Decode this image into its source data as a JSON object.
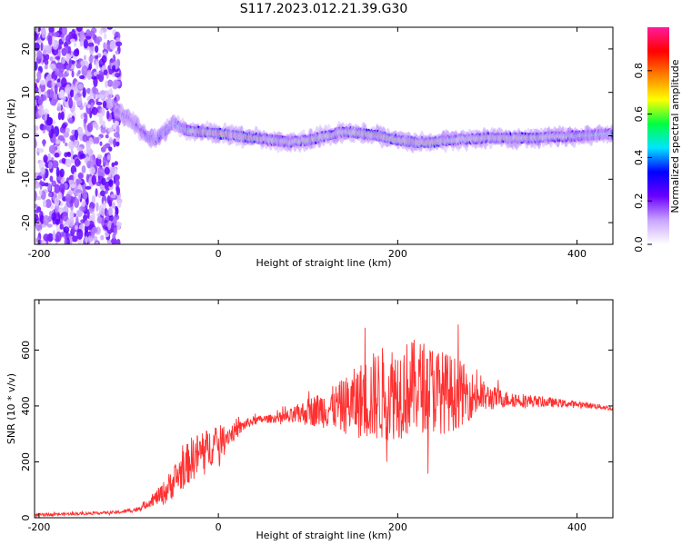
{
  "page_title": "S117.2023.012.21.39.G30",
  "chart_data": [
    {
      "type": "heatmap",
      "title": "S117.2023.012.21.39.G30",
      "xlabel": "Height of straight line (km)",
      "ylabel": "Frequency (Hz)",
      "xlim": [
        -205,
        440
      ],
      "ylim": [
        -25,
        25
      ],
      "x_ticks": [
        "-200",
        "0",
        "200",
        "400"
      ],
      "y_ticks": [
        "-20",
        "-10",
        "0",
        "10",
        "20"
      ],
      "colorbar": {
        "label": "Normalized spectral amplitude",
        "range": [
          0,
          1
        ],
        "ticks": [
          "0.0",
          "0.2",
          "0.4",
          "0.6",
          "0.8"
        ],
        "colors": [
          "#ffffff",
          "#c9a4ff",
          "#6a00ff",
          "#0000ff",
          "#00e5ff",
          "#00ff40",
          "#ffff00",
          "#ff8000",
          "#ff0000",
          "#ff1a9c"
        ]
      },
      "noise_region_x": [
        -205,
        -110
      ],
      "ridge": {
        "x": [
          -115,
          -100,
          -90,
          -80,
          -70,
          -60,
          -50,
          -40,
          -30,
          -20,
          0,
          20,
          40,
          60,
          80,
          100,
          120,
          140,
          160,
          180,
          200,
          220,
          240,
          260,
          300,
          350,
          400,
          440
        ],
        "freq": [
          6,
          4,
          2,
          0,
          -1,
          1,
          3,
          1.5,
          1,
          1,
          0.5,
          0,
          -0.5,
          -1,
          -1.5,
          -1,
          0,
          1,
          0.5,
          0,
          -1,
          -1.5,
          -1.5,
          -1,
          -0.5,
          -0.5,
          0,
          0.5
        ],
        "amplitude": [
          0.3,
          0.3,
          0.3,
          0.35,
          0.4,
          0.45,
          0.45,
          0.5,
          0.7,
          0.85,
          0.9,
          0.9,
          0.85,
          0.6,
          0.7,
          0.75,
          0.75,
          0.7,
          0.8,
          0.85,
          0.8,
          0.85,
          0.85,
          0.7,
          0.75,
          0.75,
          0.6,
          0.5
        ]
      }
    },
    {
      "type": "line",
      "xlabel": "Height of straight line (km)",
      "ylabel": "SNR (10 * v/v)",
      "xlim": [
        -205,
        440
      ],
      "ylim": [
        0,
        780
      ],
      "x_ticks": [
        "-200",
        "0",
        "200",
        "400"
      ],
      "y_ticks": [
        "0",
        "200",
        "400",
        "600"
      ],
      "color": "#ff3030",
      "series": [
        {
          "x": [
            -205,
            -150,
            -110,
            -90,
            -80,
            -70,
            -60,
            -50,
            -40,
            -30,
            -20,
            -10,
            0,
            10,
            20,
            30,
            40,
            50,
            60,
            70,
            80,
            90,
            100,
            110,
            120,
            130,
            140,
            150,
            160,
            170,
            180,
            190,
            200,
            210,
            220,
            230,
            240,
            250,
            260,
            270,
            280,
            290,
            300,
            320,
            340,
            360,
            380,
            400,
            420,
            440
          ],
          "y": [
            10,
            15,
            20,
            30,
            50,
            70,
            90,
            130,
            170,
            210,
            230,
            250,
            270,
            295,
            310,
            335,
            348,
            352,
            355,
            358,
            360,
            370,
            380,
            385,
            390,
            395,
            400,
            410,
            420,
            430,
            440,
            450,
            455,
            460,
            470,
            470,
            460,
            450,
            445,
            445,
            440,
            435,
            430,
            425,
            420,
            415,
            410,
            405,
            400,
            390
          ],
          "noise_amp": [
            5,
            5,
            5,
            10,
            15,
            25,
            45,
            60,
            70,
            80,
            80,
            70,
            60,
            40,
            30,
            20,
            15,
            15,
            15,
            20,
            30,
            40,
            50,
            60,
            70,
            80,
            100,
            120,
            140,
            160,
            170,
            175,
            175,
            175,
            170,
            165,
            160,
            150,
            140,
            120,
            90,
            70,
            50,
            30,
            25,
            20,
            15,
            12,
            10,
            8
          ]
        }
      ]
    }
  ]
}
